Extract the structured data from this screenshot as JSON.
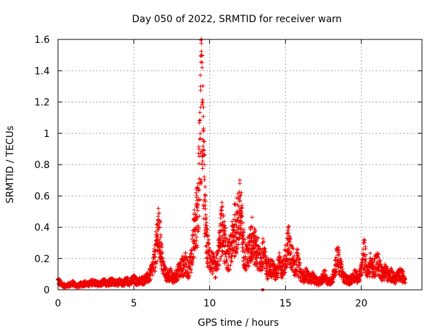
{
  "chart_data": {
    "type": "scatter",
    "title": "Day 050 of 2022, SRMTID for receiver warn",
    "xlabel": "GPS time / hours",
    "ylabel": "SRMTID / TECUs",
    "xlim": [
      0,
      24
    ],
    "ylim": [
      0,
      1.6
    ],
    "grid": true,
    "xticks": [
      0,
      5,
      10,
      15,
      20
    ],
    "xtick_labels": [
      "0",
      "5",
      "10",
      "15",
      "20"
    ],
    "yticks": [
      0,
      0.2,
      0.4,
      0.6,
      0.8,
      1.0,
      1.2,
      1.4,
      1.6
    ],
    "ytick_labels": [
      "0",
      "0.2",
      "0.4",
      "0.6",
      "0.8",
      "1",
      "1.2",
      "1.4",
      "1.6"
    ],
    "marker": "+",
    "color": "#ee0000",
    "x_range_of_data": [
      0,
      22.9
    ],
    "series": [
      {
        "name": "SRMTID",
        "x": [
          0.0,
          0.25,
          0.5,
          0.75,
          1.0,
          1.25,
          1.5,
          1.75,
          2.0,
          2.25,
          2.5,
          2.75,
          3.0,
          3.25,
          3.5,
          3.75,
          4.0,
          4.25,
          4.5,
          4.75,
          5.0,
          5.25,
          5.5,
          5.75,
          6.0,
          6.2,
          6.4,
          6.5,
          6.6,
          6.7,
          6.8,
          6.9,
          7.0,
          7.2,
          7.4,
          7.6,
          7.8,
          8.0,
          8.2,
          8.4,
          8.6,
          8.8,
          9.0,
          9.1,
          9.2,
          9.3,
          9.4,
          9.45,
          9.5,
          9.55,
          9.6,
          9.65,
          9.7,
          9.75,
          9.8,
          9.9,
          10.0,
          10.2,
          10.4,
          10.6,
          10.8,
          11.0,
          11.2,
          11.4,
          11.6,
          11.8,
          12.0,
          12.1,
          12.2,
          12.4,
          12.6,
          12.8,
          13.0,
          13.2,
          13.4,
          13.5,
          13.6,
          13.8,
          14.0,
          14.2,
          14.4,
          14.6,
          14.8,
          15.0,
          15.2,
          15.4,
          15.6,
          15.8,
          16.0,
          16.2,
          16.4,
          16.6,
          16.8,
          17.0,
          17.2,
          17.4,
          17.6,
          17.8,
          18.0,
          18.2,
          18.4,
          18.6,
          18.8,
          19.0,
          19.2,
          19.4,
          19.6,
          19.8,
          20.0,
          20.2,
          20.4,
          20.6,
          20.8,
          21.0,
          21.2,
          21.4,
          21.6,
          21.8,
          22.0,
          22.2,
          22.4,
          22.6,
          22.8
        ],
        "y": [
          0.07,
          0.04,
          0.03,
          0.04,
          0.05,
          0.03,
          0.04,
          0.05,
          0.04,
          0.06,
          0.05,
          0.04,
          0.06,
          0.05,
          0.07,
          0.05,
          0.06,
          0.05,
          0.07,
          0.06,
          0.08,
          0.06,
          0.07,
          0.08,
          0.1,
          0.15,
          0.25,
          0.35,
          0.45,
          0.4,
          0.3,
          0.2,
          0.15,
          0.1,
          0.12,
          0.08,
          0.12,
          0.15,
          0.18,
          0.2,
          0.15,
          0.25,
          0.45,
          0.62,
          0.55,
          0.9,
          1.3,
          1.5,
          1.42,
          1.2,
          0.95,
          0.8,
          0.6,
          0.45,
          0.35,
          0.3,
          0.25,
          0.2,
          0.15,
          0.3,
          0.48,
          0.35,
          0.25,
          0.3,
          0.45,
          0.5,
          0.6,
          0.52,
          0.35,
          0.25,
          0.3,
          0.4,
          0.32,
          0.28,
          0.2,
          0.3,
          0.25,
          0.15,
          0.18,
          0.15,
          0.12,
          0.2,
          0.15,
          0.25,
          0.36,
          0.28,
          0.18,
          0.22,
          0.12,
          0.1,
          0.12,
          0.08,
          0.1,
          0.07,
          0.06,
          0.08,
          0.12,
          0.06,
          0.07,
          0.12,
          0.25,
          0.2,
          0.1,
          0.08,
          0.07,
          0.09,
          0.12,
          0.08,
          0.15,
          0.3,
          0.12,
          0.2,
          0.15,
          0.22,
          0.18,
          0.12,
          0.15,
          0.1,
          0.12,
          0.08,
          0.1,
          0.12,
          0.09
        ],
        "isolated_point": {
          "x": 13.5,
          "y": 0.0
        }
      }
    ]
  }
}
